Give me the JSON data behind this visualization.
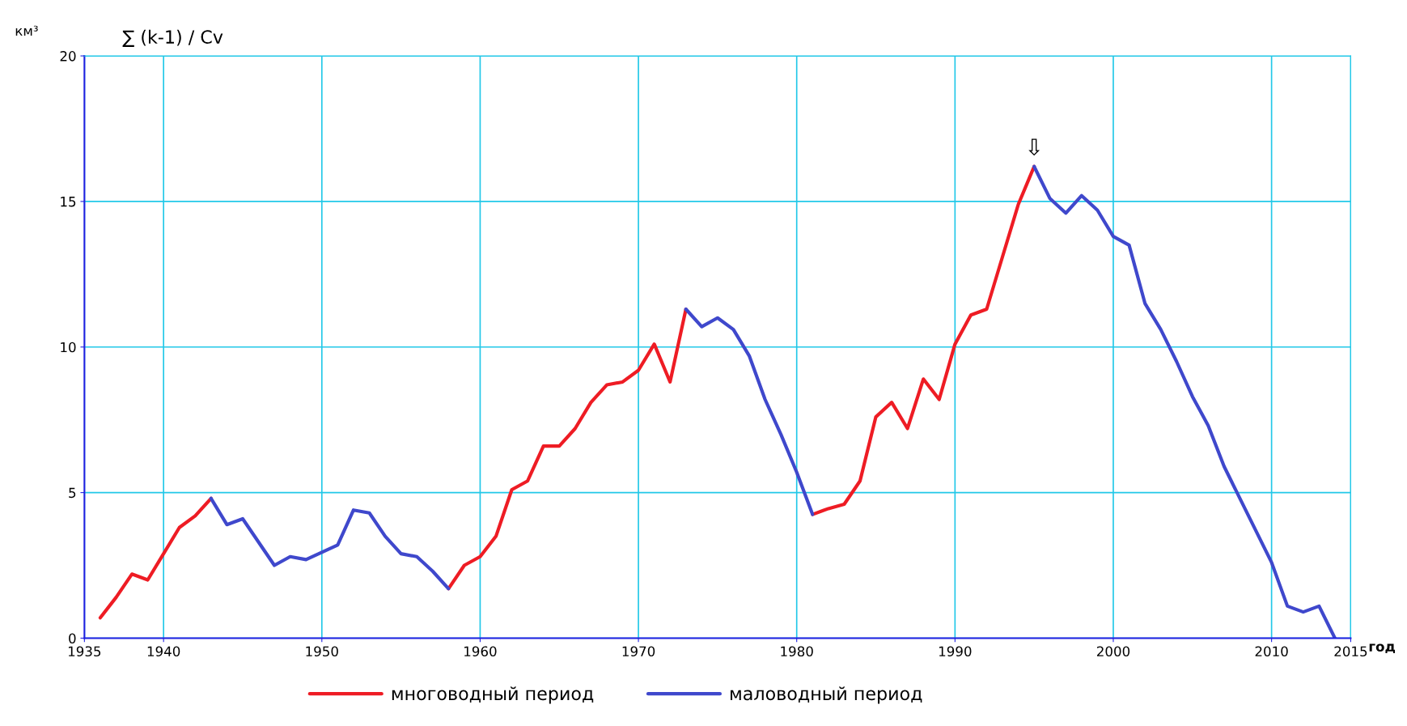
{
  "chart_data": {
    "type": "line",
    "title": "∑ (k-1) / Cv",
    "ylabel": "км³",
    "xlabel": "год",
    "x": [
      1936,
      1937,
      1938,
      1939,
      1940,
      1941,
      1942,
      1943,
      1944,
      1945,
      1946,
      1947,
      1948,
      1949,
      1950,
      1951,
      1952,
      1953,
      1954,
      1955,
      1956,
      1957,
      1958,
      1959,
      1960,
      1961,
      1962,
      1963,
      1964,
      1965,
      1966,
      1967,
      1968,
      1969,
      1970,
      1971,
      1972,
      1973,
      1974,
      1975,
      1976,
      1977,
      1978,
      1979,
      1980,
      1981,
      1982,
      1983,
      1984,
      1985,
      1986,
      1987,
      1988,
      1989,
      1990,
      1991,
      1992,
      1993,
      1994,
      1995,
      1996,
      1997,
      1998,
      1999,
      2000,
      2001,
      2002,
      2003,
      2004,
      2005,
      2006,
      2007,
      2008,
      2009,
      2010,
      2011,
      2012,
      2013,
      2014
    ],
    "series": [
      {
        "name": "многоводный период",
        "color": "#ee1c24",
        "values": [
          0.7,
          1.4,
          2.2,
          2.0,
          2.9,
          3.8,
          4.2,
          4.8,
          null,
          null,
          null,
          null,
          null,
          null,
          null,
          null,
          null,
          null,
          null,
          null,
          null,
          null,
          1.7,
          2.5,
          2.8,
          3.5,
          5.1,
          5.4,
          6.6,
          6.6,
          7.2,
          8.1,
          8.7,
          8.8,
          9.2,
          10.1,
          8.8,
          11.3,
          null,
          null,
          null,
          null,
          null,
          null,
          null,
          4.25,
          4.45,
          4.6,
          5.4,
          7.6,
          8.1,
          7.2,
          8.9,
          8.2,
          10.1,
          11.1,
          11.3,
          13.1,
          14.9,
          16.2,
          null,
          null,
          null,
          null,
          null,
          null,
          null,
          null,
          null,
          null,
          null,
          null,
          null,
          null,
          null,
          null,
          null,
          null,
          null
        ]
      },
      {
        "name": "маловодный период",
        "color": "#3f48cc",
        "values": [
          null,
          null,
          null,
          null,
          null,
          null,
          null,
          4.8,
          3.9,
          4.1,
          3.3,
          2.5,
          2.8,
          2.7,
          2.95,
          3.2,
          4.4,
          4.3,
          3.5,
          2.9,
          2.8,
          2.3,
          1.7,
          null,
          null,
          null,
          null,
          null,
          null,
          null,
          null,
          null,
          null,
          null,
          null,
          null,
          null,
          11.3,
          10.7,
          11.0,
          10.6,
          9.7,
          8.2,
          7.0,
          5.7,
          4.25,
          null,
          null,
          null,
          null,
          null,
          null,
          null,
          null,
          null,
          null,
          null,
          null,
          null,
          16.2,
          15.1,
          14.6,
          15.2,
          14.7,
          13.8,
          13.5,
          11.5,
          10.6,
          9.5,
          8.3,
          7.3,
          5.9,
          4.8,
          3.7,
          2.6,
          1.1,
          0.9,
          1.1,
          0
        ]
      }
    ],
    "xlim": [
      1935,
      2015
    ],
    "xticks": [
      1935,
      1940,
      1950,
      1960,
      1970,
      1980,
      1990,
      2000,
      2010,
      2015
    ],
    "ylim": [
      0,
      20
    ],
    "yticks": [
      0,
      5,
      10,
      15,
      20
    ],
    "grid": true,
    "legend": "bottom",
    "marker": "none",
    "line_style": "solid",
    "annotations": [
      {
        "text": "⇩",
        "x": 1995,
        "y": 16.2
      }
    ]
  }
}
